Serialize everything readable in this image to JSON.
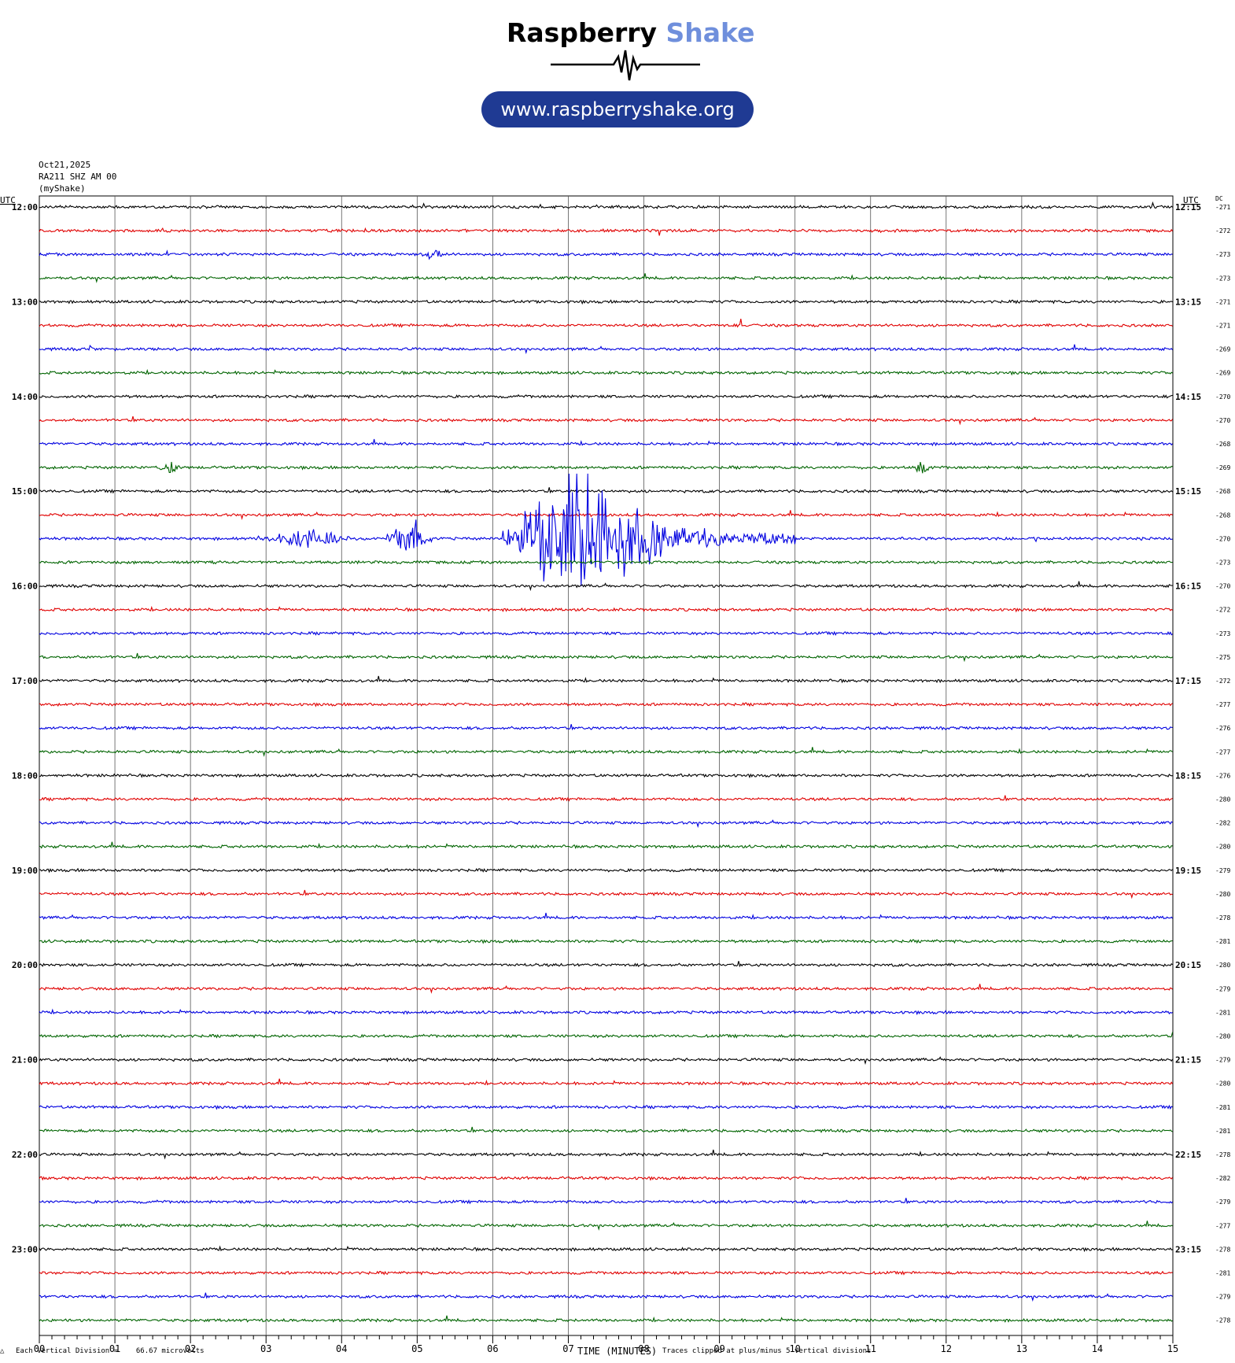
{
  "header": {
    "brand_a": "Raspberry",
    "brand_b": "Shake",
    "url": "www.raspberryshake.org",
    "colors": {
      "brand_accent": "#6f8fdc",
      "pill": "#1f3a93"
    }
  },
  "meta": {
    "date": "Oct21,2025",
    "station": "RA211 SHZ AM 00",
    "owner": "(myShake)"
  },
  "chart_data": {
    "type": "line",
    "title": "",
    "xlabel": "TIME (MINUTES)",
    "xlim": [
      0,
      15
    ],
    "x_ticks": [
      "00",
      "01",
      "02",
      "03",
      "04",
      "05",
      "06",
      "07",
      "08",
      "09",
      "10",
      "11",
      "12",
      "13",
      "14",
      "15"
    ],
    "left_axis_title": "UTC",
    "right_axis_title": "UTC",
    "dc_title": "DC",
    "hours": [
      {
        "left": "12:00",
        "right": "12:15"
      },
      {
        "left": "13:00",
        "right": "13:15"
      },
      {
        "left": "14:00",
        "right": "14:15"
      },
      {
        "left": "15:00",
        "right": "15:15"
      },
      {
        "left": "16:00",
        "right": "16:15"
      },
      {
        "left": "17:00",
        "right": "17:15"
      },
      {
        "left": "18:00",
        "right": "18:15"
      },
      {
        "left": "19:00",
        "right": "19:15"
      },
      {
        "left": "20:00",
        "right": "20:15"
      },
      {
        "left": "21:00",
        "right": "21:15"
      },
      {
        "left": "22:00",
        "right": "22:15"
      },
      {
        "left": "23:00",
        "right": "23:15"
      }
    ],
    "trace_colors": [
      "#000000",
      "#e00000",
      "#0000e0",
      "#006400"
    ],
    "dc_offsets": [
      -271,
      -272,
      -273,
      -273,
      -271,
      -271,
      -269,
      -269,
      -270,
      -270,
      -268,
      -269,
      -268,
      -268,
      -270,
      -273,
      -270,
      -272,
      -273,
      -275,
      -272,
      -277,
      -276,
      -277,
      -276,
      -280,
      -282,
      -280,
      -279,
      -280,
      -278,
      -281,
      -280,
      -279,
      -281,
      -280,
      -279,
      -280,
      -281,
      -281,
      -278,
      -282,
      -279,
      -277,
      -278,
      -281,
      -279,
      -278
    ],
    "events": [
      {
        "trace": 14,
        "start_min": 2.9,
        "end_min": 4.2,
        "amplitude_div": 0.8
      },
      {
        "trace": 14,
        "start_min": 4.6,
        "end_min": 5.2,
        "amplitude_div": 1.6
      },
      {
        "trace": 14,
        "start_min": 6.1,
        "end_min": 10.0,
        "amplitude_div": 5.0,
        "peak_min": 7.15
      },
      {
        "trace": 11,
        "start_min": 1.55,
        "end_min": 1.9,
        "amplitude_div": 0.6
      },
      {
        "trace": 11,
        "start_min": 11.5,
        "end_min": 11.85,
        "amplitude_div": 0.6
      },
      {
        "trace": 2,
        "start_min": 5.0,
        "end_min": 5.4,
        "amplitude_div": 0.5
      },
      {
        "trace": 5,
        "start_min": 9.25,
        "end_min": 9.3,
        "amplitude_div": 0.8
      },
      {
        "trace": 6,
        "start_min": 0.6,
        "end_min": 0.7,
        "amplitude_div": 0.6
      }
    ],
    "grid": true,
    "clip_divisions": 5
  },
  "footer": {
    "division_note": "Each Vertical Division =",
    "division_value": "66.67 microvolts",
    "clip_note": "Traces clipped at plus/minus 5 vertical divisions",
    "corner_mark": "△"
  }
}
